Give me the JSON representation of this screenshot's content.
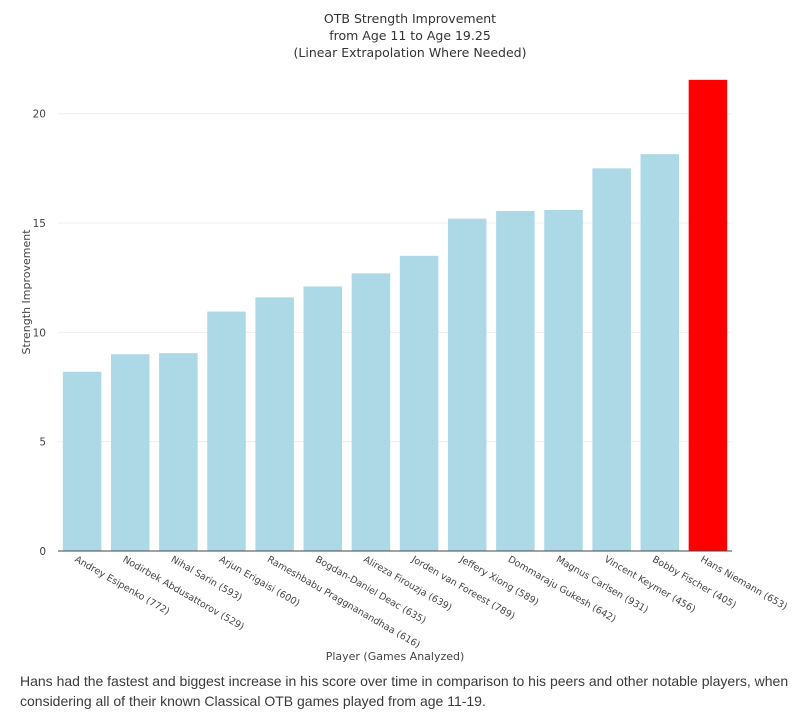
{
  "chart_data": {
    "type": "bar",
    "title": [
      "OTB Strength Improvement",
      "from Age 11 to Age 19.25",
      "(Linear Extrapolation Where Needed)"
    ],
    "xlabel": "Player (Games Analyzed)",
    "ylabel": "Strength Improvement",
    "ylim": [
      0,
      22
    ],
    "yticks": [
      0,
      5,
      10,
      15,
      20
    ],
    "grid": true,
    "categories": [
      "Andrey Esipenko (772)",
      "Nodirbek Abdusattorov (529)",
      "Nihal Sarin (593)",
      "Arjun Erigaisi (600)",
      "Rameshbabu Praggnanandhaa (616)",
      "Bogdan-Daniel Deac (635)",
      "Alireza Firouzja (639)",
      "Jorden van Foreest (789)",
      "Jeffery Xiong (589)",
      "Dommaraju Gukesh (642)",
      "Magnus Carlsen (931)",
      "Vincent Keymer (456)",
      "Bobby Fischer (405)",
      "Hans Niemann (653)"
    ],
    "values": [
      8.2,
      9.0,
      9.05,
      10.95,
      11.6,
      12.1,
      12.7,
      13.5,
      15.2,
      15.55,
      15.6,
      17.5,
      18.15,
      21.55
    ],
    "highlight_index": 13,
    "colors": {
      "bar": "#add8e6",
      "highlight": "#ff0000",
      "grid": "#eeeeee",
      "axis": "#444444"
    }
  },
  "caption": "Hans had the fastest and biggest increase in his score over time in comparison to his peers and other notable players, when considering all of their known Classical OTB games played from age 11-19."
}
